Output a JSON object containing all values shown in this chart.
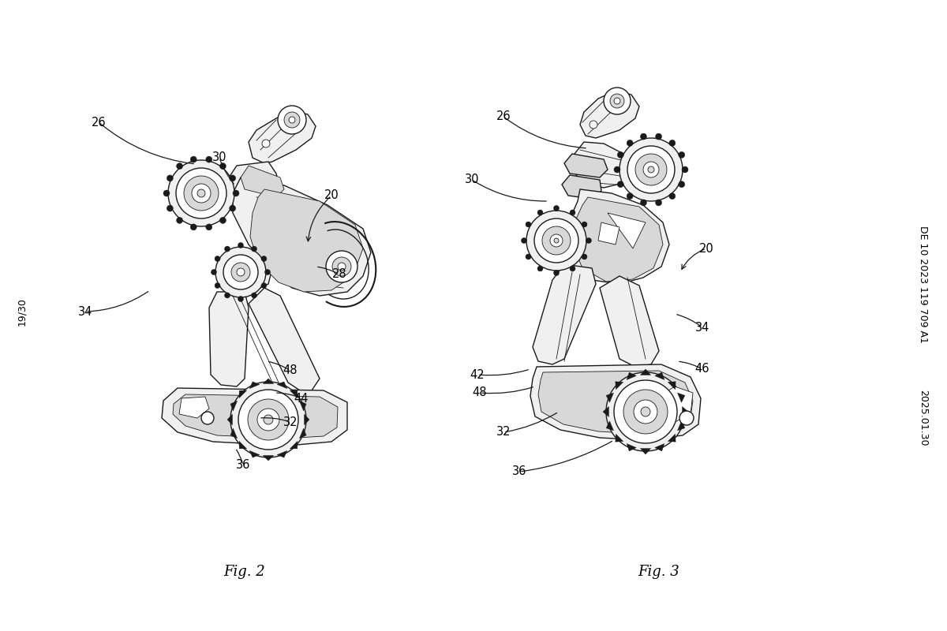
{
  "background_color": "#ffffff",
  "fig_width": 12.0,
  "fig_height": 8.0,
  "fig2_label": "Fig. 2",
  "fig3_label": "Fig. 3",
  "patent_line1": "DE 10 2023 119 709 A1",
  "patent_line2": "2025.01.30",
  "page_label": "19/30",
  "text_color": "#000000",
  "label_fontsize": 10.5,
  "fig_label_fontsize": 13,
  "line_color": "#1a1a1a",
  "fill_light": "#f0f0f0",
  "fill_mid": "#d8d8d8",
  "fill_dark": "#b8b8b8",
  "lw_main": 1.0,
  "lw_detail": 0.6
}
